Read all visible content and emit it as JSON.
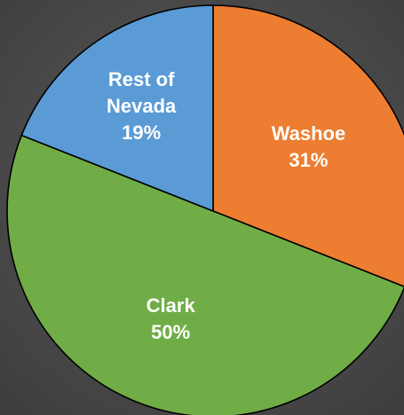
{
  "chart_data": {
    "type": "pie",
    "start_angle": "12 o'clock",
    "direction": "clockwise",
    "slices": [
      {
        "label_lines": [
          "Washoe"
        ],
        "percent_label": "31%",
        "value": 31,
        "color": "#ed7d31"
      },
      {
        "label_lines": [
          "Clark"
        ],
        "percent_label": "50%",
        "value": 50,
        "color": "#70ad47"
      },
      {
        "label_lines": [
          "Rest of",
          "Nevada"
        ],
        "percent_label": "19%",
        "value": 19,
        "color": "#5b9bd5"
      }
    ]
  }
}
